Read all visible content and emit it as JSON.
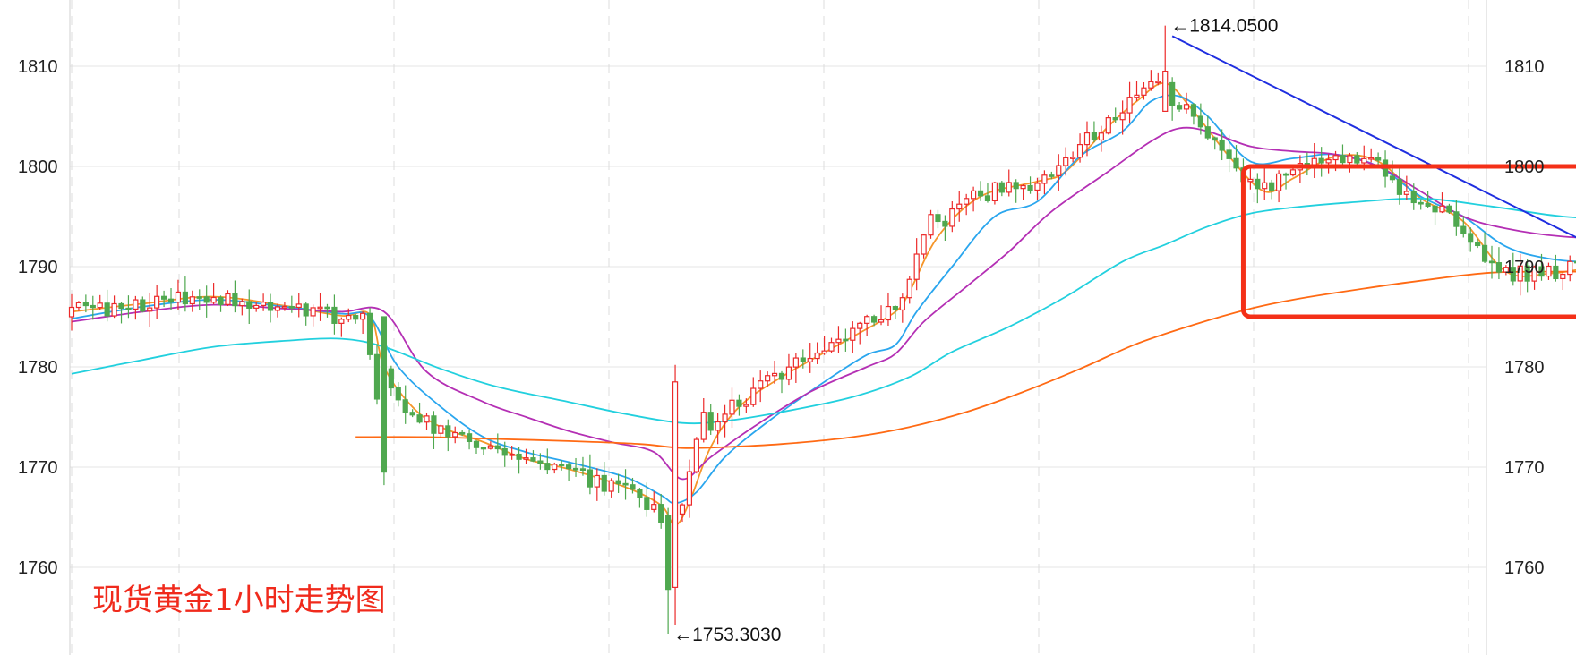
{
  "chart_data": {
    "type": "candlestick",
    "title": "现货黄金1小时走势图",
    "timeframe": "1h",
    "ylim": [
      1752,
      1816
    ],
    "yticks": [
      1760,
      1770,
      1780,
      1790,
      1800,
      1810
    ],
    "grid": true,
    "annotations": {
      "high_label": "←1814.0500",
      "high_value": 1814.05,
      "low_label": "←1753.3030",
      "low_value": 1753.303
    },
    "colors": {
      "up": "#ec2a2a",
      "down": "#4fa84f",
      "ma_orange": "#f5962a",
      "ma_blue": "#2aa6ee",
      "ma_purple": "#b42fb4",
      "ma_cyan": "#22d0de",
      "ma_dark_orange": "#ff6a14",
      "trendline": "#1f2ee0",
      "highlight_box": "#f43018"
    },
    "series": [
      {
        "name": "MA-orange",
        "anchors": [
          [
            0,
            1785.5
          ],
          [
            10,
            1786.3
          ],
          [
            20,
            1787
          ],
          [
            30,
            1786.1
          ],
          [
            38,
            1785.1
          ],
          [
            42,
            1785.2
          ],
          [
            44,
            1780
          ],
          [
            48,
            1776
          ],
          [
            52,
            1774
          ],
          [
            58,
            1772.5
          ],
          [
            64,
            1770.8
          ],
          [
            70,
            1769.8
          ],
          [
            78,
            1768
          ],
          [
            83,
            1766.2
          ],
          [
            85,
            1764.2
          ],
          [
            87,
            1766.5
          ],
          [
            90,
            1772
          ],
          [
            94,
            1776
          ],
          [
            100,
            1779
          ],
          [
            110,
            1783
          ],
          [
            116,
            1785.5
          ],
          [
            118,
            1787.5
          ],
          [
            122,
            1793
          ],
          [
            128,
            1797
          ],
          [
            136,
            1798.5
          ],
          [
            140,
            1799.5
          ],
          [
            146,
            1804
          ],
          [
            150,
            1806.5
          ],
          [
            154,
            1808.3
          ],
          [
            158,
            1805.5
          ],
          [
            163,
            1801
          ],
          [
            168,
            1797.5
          ],
          [
            172,
            1798.8
          ],
          [
            178,
            1801
          ],
          [
            184,
            1800.5
          ],
          [
            190,
            1796.8
          ],
          [
            196,
            1794.5
          ],
          [
            202,
            1789.5
          ],
          [
            208,
            1789.3
          ],
          [
            214,
            1790
          ],
          [
            218,
            1791
          ],
          [
            222,
            1795
          ],
          [
            228,
            1797
          ],
          [
            231,
            1795
          ],
          [
            234,
            1789.7
          ],
          [
            238,
            1788
          ],
          [
            244,
            1788.8
          ]
        ]
      },
      {
        "name": "MA-blue",
        "anchors": [
          [
            0,
            1784.8
          ],
          [
            10,
            1786
          ],
          [
            20,
            1786.7
          ],
          [
            30,
            1786
          ],
          [
            38,
            1785.3
          ],
          [
            42,
            1785
          ],
          [
            46,
            1780
          ],
          [
            52,
            1776
          ],
          [
            58,
            1773
          ],
          [
            64,
            1771.5
          ],
          [
            70,
            1770.5
          ],
          [
            78,
            1769
          ],
          [
            83,
            1767.2
          ],
          [
            85,
            1766.4
          ],
          [
            88,
            1767.5
          ],
          [
            92,
            1771
          ],
          [
            98,
            1774.5
          ],
          [
            106,
            1778.5
          ],
          [
            112,
            1781.2
          ],
          [
            116,
            1782.2
          ],
          [
            119,
            1785.5
          ],
          [
            124,
            1790
          ],
          [
            130,
            1795
          ],
          [
            136,
            1796.5
          ],
          [
            142,
            1801
          ],
          [
            148,
            1803.5
          ],
          [
            152,
            1806.5
          ],
          [
            156,
            1807
          ],
          [
            160,
            1805
          ],
          [
            166,
            1800.5
          ],
          [
            172,
            1800.8
          ],
          [
            178,
            1801.2
          ],
          [
            184,
            1800
          ],
          [
            190,
            1797
          ],
          [
            196,
            1795
          ],
          [
            202,
            1792
          ],
          [
            208,
            1790.8
          ],
          [
            214,
            1790.5
          ],
          [
            218,
            1791
          ],
          [
            222,
            1793.5
          ],
          [
            228,
            1795.5
          ],
          [
            231,
            1794.5
          ],
          [
            236,
            1791
          ],
          [
            240,
            1789.5
          ],
          [
            244,
            1789.3
          ]
        ]
      },
      {
        "name": "MA-purple",
        "anchors": [
          [
            0,
            1784.5
          ],
          [
            10,
            1785.5
          ],
          [
            20,
            1786.2
          ],
          [
            30,
            1785.8
          ],
          [
            38,
            1785.5
          ],
          [
            44,
            1785.5
          ],
          [
            50,
            1779.5
          ],
          [
            58,
            1776.5
          ],
          [
            64,
            1775
          ],
          [
            70,
            1773.6
          ],
          [
            76,
            1772.5
          ],
          [
            82,
            1771.5
          ],
          [
            86,
            1768.8
          ],
          [
            90,
            1771
          ],
          [
            96,
            1774
          ],
          [
            104,
            1777.5
          ],
          [
            112,
            1780
          ],
          [
            116,
            1781.3
          ],
          [
            120,
            1784.5
          ],
          [
            126,
            1788
          ],
          [
            132,
            1791.5
          ],
          [
            138,
            1795.5
          ],
          [
            146,
            1799.5
          ],
          [
            152,
            1802.5
          ],
          [
            156,
            1803.8
          ],
          [
            160,
            1803.5
          ],
          [
            166,
            1802
          ],
          [
            172,
            1801.5
          ],
          [
            178,
            1801.2
          ],
          [
            184,
            1800
          ],
          [
            190,
            1797.5
          ],
          [
            196,
            1795
          ],
          [
            202,
            1793.8
          ],
          [
            210,
            1793
          ],
          [
            216,
            1793
          ],
          [
            222,
            1794
          ],
          [
            228,
            1795.2
          ],
          [
            232,
            1794.5
          ],
          [
            238,
            1792
          ],
          [
            244,
            1791
          ]
        ]
      },
      {
        "name": "MA-cyan",
        "anchors": [
          [
            0,
            1779.3
          ],
          [
            10,
            1780.7
          ],
          [
            20,
            1782
          ],
          [
            30,
            1782.6
          ],
          [
            38,
            1782.8
          ],
          [
            44,
            1782
          ],
          [
            52,
            1779.8
          ],
          [
            60,
            1778
          ],
          [
            70,
            1776.5
          ],
          [
            78,
            1775.3
          ],
          [
            86,
            1774.4
          ],
          [
            92,
            1774.6
          ],
          [
            100,
            1775.5
          ],
          [
            110,
            1777
          ],
          [
            118,
            1779
          ],
          [
            124,
            1781.5
          ],
          [
            132,
            1784
          ],
          [
            140,
            1787
          ],
          [
            148,
            1790.5
          ],
          [
            154,
            1792.2
          ],
          [
            160,
            1794
          ],
          [
            166,
            1795.3
          ],
          [
            172,
            1795.9
          ],
          [
            180,
            1796.4
          ],
          [
            190,
            1796.8
          ],
          [
            200,
            1796
          ],
          [
            210,
            1795
          ],
          [
            218,
            1794.8
          ],
          [
            226,
            1795
          ],
          [
            232,
            1794.6
          ],
          [
            238,
            1793.6
          ],
          [
            244,
            1793
          ]
        ]
      },
      {
        "name": "MA-dark-orange",
        "anchors": [
          [
            40,
            1773
          ],
          [
            50,
            1773
          ],
          [
            60,
            1772.8
          ],
          [
            70,
            1772.6
          ],
          [
            80,
            1772.3
          ],
          [
            86,
            1771.9
          ],
          [
            92,
            1772
          ],
          [
            100,
            1772.3
          ],
          [
            110,
            1773
          ],
          [
            118,
            1774
          ],
          [
            126,
            1775.5
          ],
          [
            134,
            1777.5
          ],
          [
            142,
            1779.8
          ],
          [
            150,
            1782.3
          ],
          [
            158,
            1784.2
          ],
          [
            166,
            1785.8
          ],
          [
            172,
            1786.7
          ],
          [
            180,
            1787.6
          ],
          [
            190,
            1788.6
          ],
          [
            200,
            1789.4
          ],
          [
            210,
            1789.5
          ],
          [
            220,
            1789.5
          ],
          [
            226,
            1790
          ],
          [
            232,
            1790.4
          ],
          [
            238,
            1790.3
          ],
          [
            244,
            1790.3
          ]
        ]
      }
    ],
    "trendline": {
      "from": [
        155,
        1813
      ],
      "to": [
        240,
        1783
      ]
    },
    "highlight_box": {
      "x_range": [
        165,
        246
      ],
      "y_range": [
        1785,
        1800
      ]
    }
  }
}
